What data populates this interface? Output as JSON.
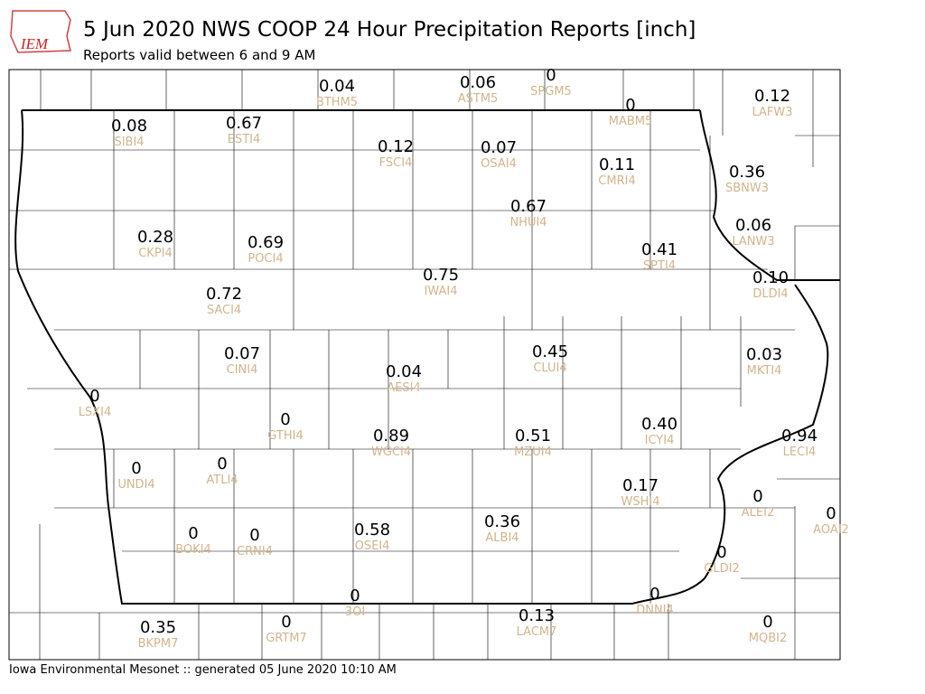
{
  "header": {
    "logo": "IEM",
    "title": "5 Jun 2020 NWS COOP 24 Hour Precipitation Reports [inch]",
    "subtitle": "Reports valid between 6 and 9 AM"
  },
  "stations": [
    {
      "value": "0.04",
      "id": "BTHM5"
    },
    {
      "value": "0.06",
      "id": "ASTM5"
    },
    {
      "value": "0",
      "id": "SPGM5"
    },
    {
      "value": "0",
      "id": "MABM5"
    },
    {
      "value": "0.12",
      "id": "LAFW3"
    },
    {
      "value": "0.08",
      "id": "SIBI4"
    },
    {
      "value": "0.67",
      "id": "ESTI4"
    },
    {
      "value": "0.12",
      "id": "FSCI4"
    },
    {
      "value": "0.07",
      "id": "OSAI4"
    },
    {
      "value": "0.11",
      "id": "CMRI4"
    },
    {
      "value": "0.36",
      "id": "SBNW3"
    },
    {
      "value": "0.67",
      "id": "NHUI4"
    },
    {
      "value": "0.06",
      "id": "LANW3"
    },
    {
      "value": "0.28",
      "id": "CKPI4"
    },
    {
      "value": "0.69",
      "id": "POCI4"
    },
    {
      "value": "0.41",
      "id": "SPTI4"
    },
    {
      "value": "0.75",
      "id": "IWAI4"
    },
    {
      "value": "0.10",
      "id": "DLDI4"
    },
    {
      "value": "0.72",
      "id": "SACI4"
    },
    {
      "value": "0.45",
      "id": "CLUI4"
    },
    {
      "value": "0.03",
      "id": "MKTI4"
    },
    {
      "value": "0.07",
      "id": "CINI4"
    },
    {
      "value": "0.04",
      "id": "AESI4"
    },
    {
      "value": "0",
      "id": "LSXI4"
    },
    {
      "value": "0",
      "id": "GTHI4"
    },
    {
      "value": "0.40",
      "id": "ICYI4"
    },
    {
      "value": "0.89",
      "id": "WGCI4"
    },
    {
      "value": "0.51",
      "id": "MZUI4"
    },
    {
      "value": "0.94",
      "id": "LECI4"
    },
    {
      "value": "0",
      "id": "ATLI4"
    },
    {
      "value": "0",
      "id": "UNDI4"
    },
    {
      "value": "0.17",
      "id": "WSHI4"
    },
    {
      "value": "0",
      "id": "ALEI2"
    },
    {
      "value": "0",
      "id": "AOAI2"
    },
    {
      "value": "0.36",
      "id": "ALBI4"
    },
    {
      "value": "0.58",
      "id": "OSEI4"
    },
    {
      "value": "0",
      "id": "BOKI4"
    },
    {
      "value": "0",
      "id": "CRNI4"
    },
    {
      "value": "0",
      "id": "GLDI2"
    },
    {
      "value": "0",
      "id": "DNNI4"
    },
    {
      "value": "0",
      "id": "3OI"
    },
    {
      "value": "0",
      "id": "GRTM7"
    },
    {
      "value": "0.13",
      "id": "LACM7"
    },
    {
      "value": "0",
      "id": "MQBI2"
    },
    {
      "value": "0.35",
      "id": "BKPM7"
    }
  ],
  "footer": "Iowa Environmental Mesonet :: generated 05 June 2020 10:10 AM"
}
